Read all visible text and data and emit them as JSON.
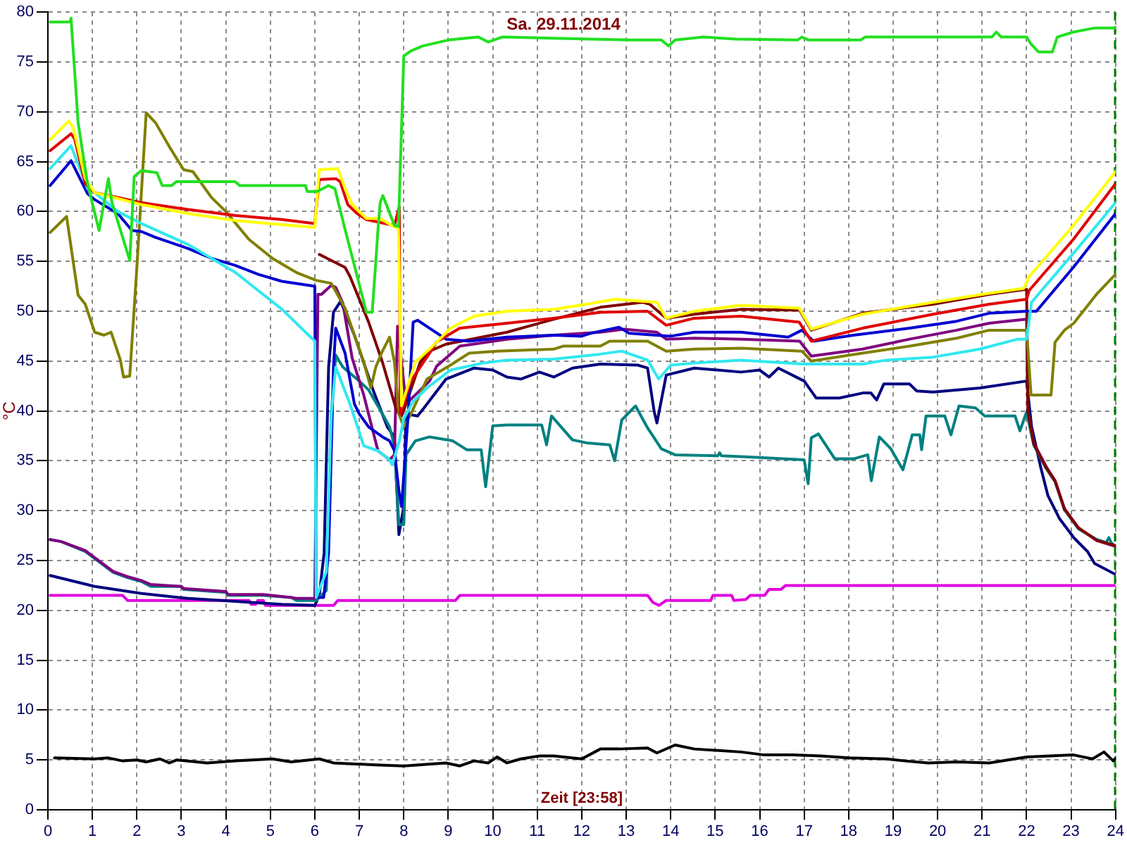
{
  "chart_data": {
    "type": "line",
    "title": "Sa. 29.11.2014",
    "xlabel": "Zeit [23:58]",
    "ylabel": "°C",
    "xlim": [
      0,
      24
    ],
    "xticks": [
      0,
      1,
      2,
      3,
      4,
      5,
      6,
      7,
      8,
      9,
      10,
      11,
      12,
      13,
      14,
      15,
      16,
      17,
      18,
      19,
      20,
      21,
      22,
      23,
      24
    ],
    "ylim": [
      0,
      80
    ],
    "yticks": [
      0,
      5,
      10,
      15,
      20,
      25,
      30,
      35,
      40,
      45,
      50,
      55,
      60,
      65,
      70,
      75,
      80
    ],
    "grid": true,
    "ref_lines": [
      {
        "axis": "x",
        "value": 24,
        "color": "#008000",
        "line_style": "dashed"
      }
    ],
    "series": [
      {
        "color": "#22e022",
        "x": [
          0.05,
          0.5,
          0.52,
          0.68,
          0.89,
          1.15,
          1.36,
          1.44,
          1.84,
          1.94,
          2.1,
          2.45,
          2.57,
          2.78,
          2.89,
          4.21,
          4.31,
          5.79,
          5.83,
          6.05,
          6.31,
          6.45,
          6.68,
          7.16,
          7.29,
          7.37,
          7.42,
          7.47,
          7.53,
          7.79,
          7.88,
          8.0,
          8.16,
          8.42,
          9.0,
          9.68,
          9.9,
          10.21,
          13.06,
          13.79,
          13.95,
          14.1,
          14.74,
          15.47,
          16.85,
          16.95,
          17.1,
          18.27,
          18.37,
          21.22,
          21.32,
          21.43,
          22.0,
          22.1,
          22.27,
          22.58,
          22.69,
          23.05,
          23.52,
          24.0
        ],
        "values": [
          79.0,
          79.0,
          79.4,
          68.9,
          62.8,
          58.1,
          63.3,
          60.9,
          55.1,
          63.5,
          64.1,
          63.9,
          62.6,
          62.6,
          63.0,
          63.0,
          62.6,
          62.6,
          62.0,
          62.0,
          62.6,
          62.3,
          58.2,
          49.9,
          49.9,
          54.9,
          58.2,
          60.9,
          61.6,
          58.6,
          58.5,
          75.6,
          76.1,
          76.6,
          77.2,
          77.5,
          77.0,
          77.5,
          77.2,
          77.2,
          76.6,
          77.2,
          77.5,
          77.3,
          77.2,
          77.5,
          77.2,
          77.2,
          77.5,
          77.5,
          78.0,
          77.5,
          77.5,
          76.8,
          76.0,
          76.0,
          77.5,
          78.0,
          78.4,
          78.4
        ]
      },
      {
        "color": "#ffff00",
        "x": [
          0.05,
          0.47,
          0.57,
          0.84,
          1.05,
          2.1,
          3.15,
          4.21,
          6.0,
          6.1,
          6.52,
          6.68,
          6.84,
          7.16,
          7.47,
          7.73,
          7.88,
          7.95,
          8.26,
          8.58,
          9.05,
          9.58,
          10.32,
          11.37,
          12.11,
          12.74,
          13.69,
          13.9,
          14.53,
          15.58,
          16.89,
          17.16,
          18.31,
          19.9,
          21.16,
          21.94,
          22.06,
          23.05,
          24.0
        ],
        "values": [
          67.2,
          69.1,
          68.4,
          63.3,
          61.9,
          60.7,
          59.8,
          59.1,
          58.4,
          64.2,
          64.3,
          62.3,
          60.7,
          59.3,
          59.3,
          58.6,
          58.3,
          40.5,
          44.9,
          46.2,
          48.3,
          49.5,
          50.0,
          50.2,
          50.7,
          51.2,
          50.9,
          49.3,
          50.0,
          50.6,
          50.3,
          48.2,
          49.7,
          50.9,
          51.8,
          52.3,
          53.5,
          58.6,
          64.0
        ]
      },
      {
        "color": "#e00000",
        "x": [
          0.05,
          0.52,
          0.6,
          0.84,
          1.05,
          1.57,
          2.1,
          3.15,
          4.21,
          5.26,
          6.0,
          6.1,
          6.47,
          6.57,
          6.74,
          6.95,
          7.16,
          7.79,
          7.9,
          7.92,
          8.16,
          8.58,
          8.73,
          9.26,
          10.32,
          11.37,
          12.42,
          13.48,
          13.9,
          14.53,
          15.58,
          16.89,
          17.16,
          18.31,
          19.9,
          21.16,
          22.0,
          22.06,
          23.05,
          24.0
        ],
        "values": [
          66.1,
          67.8,
          67.3,
          62.8,
          61.9,
          61.4,
          60.9,
          60.2,
          59.6,
          59.2,
          58.8,
          63.2,
          63.3,
          63.0,
          60.7,
          59.8,
          59.2,
          58.6,
          60.5,
          39.7,
          43.0,
          45.8,
          46.9,
          48.3,
          48.8,
          49.3,
          49.9,
          50.0,
          48.6,
          49.3,
          49.5,
          48.9,
          47.0,
          48.3,
          49.7,
          50.7,
          51.2,
          52.1,
          57.2,
          62.8
        ]
      },
      {
        "color": "#30e8f0",
        "x": [
          0.05,
          0.52,
          0.89,
          1.05,
          1.57,
          2.1,
          3.15,
          4.21,
          5.26,
          6.0,
          6.03,
          6.26,
          6.37,
          6.47,
          6.79,
          7.1,
          7.42,
          7.68,
          7.74,
          7.9,
          8.0,
          8.2,
          8.52,
          9.05,
          9.78,
          10.32,
          11.37,
          12.42,
          12.9,
          13.48,
          13.73,
          14.0,
          14.53,
          15.58,
          17.0,
          18.31,
          18.85,
          19.9,
          20.95,
          21.8,
          22.0,
          22.11,
          23.05,
          24.0
        ],
        "values": [
          64.3,
          66.6,
          62.3,
          61.9,
          60.0,
          58.8,
          56.7,
          53.9,
          50.2,
          47.0,
          21.3,
          23.9,
          39.7,
          44.4,
          40.7,
          36.5,
          36.0,
          35.1,
          34.6,
          37.0,
          39.2,
          40.9,
          42.3,
          44.1,
          44.8,
          45.1,
          45.2,
          45.7,
          46.0,
          45.1,
          43.2,
          44.6,
          44.8,
          45.1,
          44.7,
          44.7,
          45.1,
          45.4,
          46.2,
          47.2,
          47.2,
          50.9,
          55.8,
          60.9
        ]
      },
      {
        "color": "#0000d0",
        "x": [
          0.05,
          0.52,
          0.89,
          1.05,
          1.57,
          1.89,
          2.1,
          2.42,
          3.15,
          3.68,
          4.21,
          4.73,
          5.26,
          6.0,
          6.03,
          6.2,
          6.31,
          6.42,
          6.47,
          6.68,
          6.89,
          7.0,
          7.21,
          7.52,
          7.68,
          7.79,
          7.89,
          7.95,
          8.1,
          8.21,
          8.31,
          8.58,
          8.95,
          9.47,
          10.32,
          11.37,
          12.0,
          12.21,
          12.84,
          13.06,
          14.0,
          14.53,
          15.58,
          16.64,
          16.95,
          17.21,
          18.11,
          19.37,
          20.43,
          21.16,
          22.0,
          22.22,
          23.05,
          24.0
        ],
        "values": [
          62.6,
          65.1,
          61.8,
          61.2,
          59.8,
          58.1,
          58.0,
          57.4,
          56.3,
          55.3,
          54.6,
          53.7,
          53.0,
          52.5,
          21.3,
          21.3,
          25.8,
          44.4,
          48.3,
          45.8,
          40.7,
          39.7,
          38.4,
          37.4,
          37.0,
          36.0,
          32.0,
          30.4,
          39.7,
          48.9,
          49.1,
          48.3,
          47.2,
          47.0,
          47.4,
          47.6,
          47.5,
          47.8,
          48.4,
          47.8,
          47.5,
          47.9,
          47.9,
          47.4,
          48.1,
          47.0,
          47.6,
          48.3,
          49.0,
          49.8,
          50.0,
          50.0,
          54.4,
          59.8
        ]
      },
      {
        "color": "#808000",
        "x": [
          0.05,
          0.42,
          0.68,
          0.84,
          1.05,
          1.26,
          1.42,
          1.63,
          1.7,
          1.84,
          2.0,
          2.21,
          2.42,
          2.73,
          3.05,
          3.26,
          3.68,
          4.0,
          4.52,
          5.05,
          5.58,
          6.03,
          6.37,
          6.68,
          6.89,
          7.1,
          7.26,
          7.37,
          7.52,
          7.68,
          7.79,
          7.89,
          8.0,
          8.16,
          8.52,
          9.05,
          9.47,
          10.1,
          11.37,
          11.58,
          12.42,
          12.63,
          13.48,
          13.9,
          14.53,
          15.6,
          16.95,
          17.16,
          18.31,
          19.37,
          20.43,
          21.16,
          22.0,
          22.1,
          22.55,
          22.64,
          22.85,
          23.06,
          23.59,
          24.0
        ],
        "values": [
          57.9,
          59.5,
          51.6,
          50.7,
          47.9,
          47.6,
          47.9,
          45.1,
          43.4,
          43.5,
          54.4,
          69.9,
          68.9,
          66.5,
          64.2,
          64.0,
          61.4,
          60.0,
          57.2,
          55.3,
          53.9,
          53.1,
          52.8,
          50.3,
          47.6,
          44.9,
          42.3,
          44.4,
          46.0,
          47.4,
          44.9,
          39.7,
          38.4,
          39.7,
          43.2,
          44.6,
          45.8,
          46.0,
          46.2,
          46.5,
          46.5,
          47.0,
          47.0,
          46.0,
          46.2,
          46.3,
          46.0,
          45.0,
          45.8,
          46.5,
          47.3,
          48.1,
          48.1,
          41.6,
          41.6,
          46.9,
          48.1,
          48.8,
          51.8,
          53.7
        ]
      },
      {
        "color": "#800000",
        "x": [
          6.1,
          6.68,
          6.79,
          7.21,
          7.52,
          7.84,
          7.95,
          8.05,
          8.37,
          8.58,
          8.95,
          10.32,
          11.37,
          12.42,
          13.37,
          13.53,
          13.9,
          14.53,
          15.6,
          16.9,
          17.16,
          18.31,
          19.9,
          21.16,
          22.0,
          22.03,
          22.16,
          22.43,
          22.64,
          22.85,
          23.16,
          23.58,
          24.0
        ],
        "values": [
          55.7,
          54.4,
          53.5,
          48.9,
          44.9,
          40.0,
          39.5,
          40.7,
          44.9,
          46.0,
          46.7,
          47.9,
          49.2,
          50.4,
          50.9,
          50.7,
          49.3,
          49.7,
          50.2,
          50.1,
          48.1,
          49.8,
          50.7,
          51.7,
          52.2,
          40.0,
          36.7,
          34.4,
          33.0,
          30.2,
          28.3,
          27.0,
          26.5
        ]
      },
      {
        "color": "#800080",
        "x": [
          0.05,
          0.3,
          0.84,
          1.05,
          1.47,
          1.78,
          2.1,
          2.31,
          3.0,
          3.05,
          4.0,
          4.05,
          4.84,
          5.47,
          5.58,
          6.0,
          6.07,
          6.15,
          6.37,
          6.47,
          6.63,
          6.84,
          7.1,
          7.31,
          7.42,
          7.68,
          7.79,
          7.86,
          7.95,
          8.05,
          8.58,
          8.74,
          9.26,
          10.32,
          11.37,
          12.42,
          12.95,
          13.69,
          13.9,
          14.53,
          15.6,
          16.9,
          17.16,
          18.31,
          19.37,
          20.43,
          21.16,
          22.0,
          22.03,
          22.16,
          22.43,
          22.64,
          22.85,
          23.16,
          23.58,
          24.0
        ],
        "values": [
          27.1,
          26.9,
          26.0,
          25.3,
          23.9,
          23.4,
          23.0,
          22.6,
          22.4,
          22.2,
          21.9,
          21.6,
          21.6,
          21.3,
          21.2,
          21.2,
          51.7,
          51.7,
          52.6,
          52.4,
          50.8,
          45.3,
          41.6,
          37.9,
          36.0,
          35.1,
          35.6,
          48.5,
          44.9,
          40.7,
          43.0,
          44.5,
          46.5,
          47.2,
          47.6,
          47.9,
          48.2,
          47.9,
          47.2,
          47.3,
          47.2,
          47.0,
          45.5,
          46.2,
          47.2,
          48.1,
          48.8,
          49.2,
          40.0,
          36.8,
          34.5,
          33.0,
          30.2,
          28.3,
          27.0,
          26.4
        ]
      },
      {
        "color": "#008080",
        "x": [
          0.05,
          0.3,
          0.84,
          1.05,
          1.47,
          1.78,
          2.1,
          2.31,
          3.0,
          3.05,
          4.0,
          4.05,
          4.84,
          5.47,
          5.58,
          6.03,
          6.26,
          6.37,
          6.47,
          6.63,
          7.0,
          7.21,
          7.52,
          7.68,
          7.79,
          7.89,
          8.0,
          8.05,
          8.26,
          8.58,
          9.1,
          9.42,
          9.74,
          9.84,
          10.0,
          10.32,
          11.1,
          11.21,
          11.32,
          11.79,
          12.11,
          12.63,
          12.74,
          12.9,
          13.21,
          13.48,
          13.79,
          14.1,
          15.06,
          15.1,
          15.14,
          15.69,
          17.0,
          17.09,
          17.16,
          17.32,
          17.69,
          18.11,
          18.43,
          18.51,
          18.69,
          18.95,
          19.22,
          19.43,
          19.6,
          19.64,
          19.74,
          20.16,
          20.3,
          20.48,
          20.85,
          21.06,
          21.74,
          21.85,
          22.0,
          22.16,
          22.43,
          22.64,
          22.85,
          23.16,
          23.58,
          23.79,
          23.85,
          23.9,
          24.0
        ],
        "values": [
          27.1,
          26.9,
          25.9,
          25.2,
          23.8,
          23.3,
          22.9,
          22.4,
          22.4,
          22.1,
          21.8,
          21.5,
          21.5,
          21.3,
          21.0,
          21.0,
          22.0,
          39.7,
          45.6,
          44.4,
          43.0,
          42.1,
          39.7,
          38.4,
          36.5,
          28.6,
          28.6,
          35.6,
          37.0,
          37.4,
          37.0,
          36.1,
          36.1,
          32.4,
          38.5,
          38.6,
          38.6,
          36.6,
          39.5,
          37.1,
          36.8,
          36.6,
          35.0,
          39.1,
          40.5,
          38.3,
          36.2,
          35.6,
          35.5,
          35.8,
          35.5,
          35.4,
          35.1,
          32.7,
          37.3,
          37.7,
          35.2,
          35.2,
          35.6,
          33.0,
          37.4,
          36.2,
          34.1,
          37.6,
          37.6,
          36.1,
          39.5,
          39.5,
          37.6,
          40.5,
          40.3,
          39.5,
          39.5,
          38.0,
          39.9,
          36.6,
          34.3,
          32.9,
          30.1,
          28.2,
          27.1,
          26.8,
          27.3,
          26.8,
          26.4
        ]
      },
      {
        "color": "#000080",
        "x": [
          0.05,
          1.05,
          2.1,
          3.15,
          4.21,
          5.26,
          6.0,
          6.1,
          6.21,
          6.31,
          6.42,
          6.58,
          6.89,
          7.31,
          7.63,
          7.79,
          7.89,
          8.0,
          8.05,
          8.31,
          8.47,
          8.95,
          9.58,
          10.0,
          10.32,
          10.63,
          11.05,
          11.37,
          11.79,
          12.42,
          13.26,
          13.48,
          13.63,
          13.69,
          13.9,
          14.53,
          15.58,
          16.0,
          16.21,
          16.42,
          17.0,
          17.27,
          17.79,
          18.32,
          18.5,
          18.63,
          18.79,
          19.37,
          19.53,
          19.9,
          20.95,
          22.0,
          22.11,
          22.32,
          22.48,
          22.74,
          23.06,
          23.37,
          23.53,
          24.0
        ],
        "values": [
          23.5,
          22.4,
          21.7,
          21.2,
          20.9,
          20.6,
          20.5,
          21.5,
          25.8,
          44.4,
          49.9,
          51.0,
          47.6,
          42.1,
          38.4,
          37.4,
          27.6,
          30.4,
          39.7,
          39.5,
          40.4,
          43.2,
          44.3,
          44.1,
          43.4,
          43.2,
          43.9,
          43.4,
          44.3,
          44.7,
          44.6,
          44.3,
          39.9,
          38.8,
          43.6,
          44.3,
          43.9,
          44.1,
          43.4,
          44.3,
          43.0,
          41.3,
          41.3,
          41.8,
          41.8,
          41.1,
          42.7,
          42.7,
          42.0,
          41.9,
          42.3,
          43.0,
          38.5,
          34.3,
          31.5,
          29.2,
          27.3,
          25.9,
          24.7,
          23.6
        ]
      },
      {
        "color": "#e000e0",
        "x": [
          0.05,
          1.68,
          1.79,
          4.52,
          4.57,
          4.67,
          4.72,
          4.84,
          4.89,
          6.42,
          6.52,
          9.16,
          9.26,
          13.48,
          13.6,
          13.74,
          13.9,
          14.9,
          14.95,
          15.37,
          15.42,
          15.69,
          15.79,
          16.11,
          16.21,
          16.48,
          16.58,
          24.0
        ],
        "values": [
          21.5,
          21.5,
          21.0,
          21.0,
          20.6,
          20.6,
          21.0,
          21.0,
          20.5,
          20.5,
          21.0,
          21.0,
          21.5,
          21.5,
          20.8,
          20.5,
          21.0,
          21.0,
          21.5,
          21.5,
          21.0,
          21.1,
          21.5,
          21.5,
          22.1,
          22.1,
          22.5,
          22.5
        ]
      },
      {
        "color": "#000000",
        "x": [
          0.15,
          1.05,
          1.36,
          1.68,
          2.0,
          2.21,
          2.52,
          2.73,
          2.9,
          3.58,
          4.21,
          5.05,
          5.47,
          6.1,
          6.42,
          7.37,
          8.0,
          8.95,
          9.26,
          9.58,
          9.9,
          10.1,
          10.32,
          10.63,
          11.05,
          11.37,
          12.0,
          12.42,
          12.84,
          13.48,
          13.69,
          14.1,
          14.53,
          15.58,
          16.11,
          16.74,
          17.37,
          18.0,
          18.85,
          19.27,
          19.79,
          20.43,
          21.16,
          22.0,
          22.53,
          23.06,
          23.48,
          23.74,
          23.95,
          24.0
        ],
        "values": [
          5.2,
          5.1,
          5.2,
          4.9,
          5.0,
          4.8,
          5.1,
          4.7,
          5.0,
          4.7,
          4.9,
          5.1,
          4.8,
          5.1,
          4.7,
          4.5,
          4.4,
          4.7,
          4.4,
          4.9,
          4.7,
          5.3,
          4.7,
          5.1,
          5.4,
          5.4,
          5.1,
          6.1,
          6.1,
          6.2,
          5.7,
          6.5,
          6.1,
          5.8,
          5.5,
          5.5,
          5.4,
          5.2,
          5.1,
          4.9,
          4.7,
          4.8,
          4.7,
          5.3,
          5.4,
          5.5,
          5.1,
          5.8,
          4.9,
          5.2
        ]
      }
    ]
  }
}
